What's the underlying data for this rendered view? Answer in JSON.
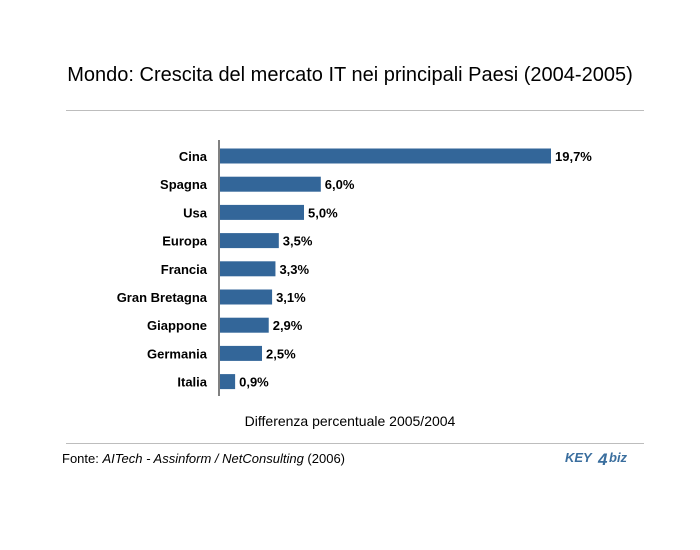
{
  "header": {
    "title": "Mondo: Crescita del mercato IT nei principali Paesi (2004-2005)"
  },
  "chart_data": {
    "type": "bar",
    "orientation": "horizontal",
    "categories": [
      "Cina",
      "Spagna",
      "Usa",
      "Europa",
      "Francia",
      "Gran Bretagna",
      "Giappone",
      "Germania",
      "Italia"
    ],
    "values": [
      19.7,
      6.0,
      5.0,
      3.5,
      3.3,
      3.1,
      2.9,
      2.5,
      0.9
    ],
    "value_labels": [
      "19,7%",
      "6,0%",
      "5,0%",
      "3,5%",
      "3,3%",
      "3,1%",
      "2,9%",
      "2,5%",
      "0,9%"
    ],
    "xlabel": "Differenza percentuale 2005/2004",
    "xlim": [
      0,
      19.7
    ],
    "grid": false,
    "bar_color": "#336699"
  },
  "footer": {
    "source_prefix": "Fonte: ",
    "source_italic": "AITech - Assinform / NetConsulting",
    "source_suffix": " (2006)",
    "logo_text_left": "KEY",
    "logo_digit": "4",
    "logo_text_right": "biz",
    "logo_color": "#3a6e9e"
  }
}
